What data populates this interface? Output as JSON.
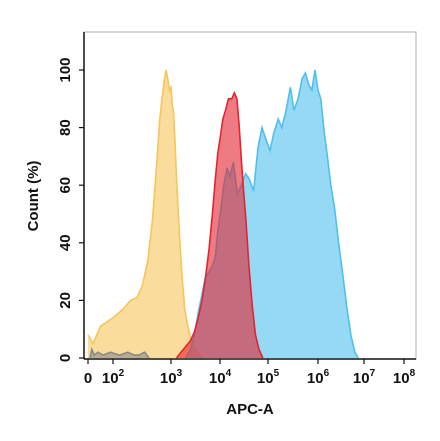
{
  "chart_data": {
    "type": "area",
    "xlabel": "APC-A",
    "ylabel": "Count (%)",
    "x_scale": "biexponential",
    "x_ticks": [
      {
        "value": 0,
        "base": "0",
        "exp": ""
      },
      {
        "value": 100,
        "base": "10",
        "exp": "2"
      },
      {
        "value": 1000,
        "base": "10",
        "exp": "3"
      },
      {
        "value": 10000,
        "base": "10",
        "exp": "4"
      },
      {
        "value": 100000,
        "base": "10",
        "exp": "5"
      },
      {
        "value": 1000000,
        "base": "10",
        "exp": "6"
      },
      {
        "value": 10000000,
        "base": "10",
        "exp": "7"
      },
      {
        "value": 100000000,
        "base": "10",
        "exp": "8"
      }
    ],
    "y_ticks": [
      "0",
      "20",
      "40",
      "60",
      "80",
      "100"
    ],
    "ylim": [
      0,
      108
    ],
    "grid": false,
    "series": [
      {
        "color": "#f7c55a",
        "x": [
          0,
          20,
          50,
          100,
          150,
          200,
          260,
          320,
          400,
          480,
          560,
          640,
          700,
          760,
          820,
          880,
          940,
          1000,
          1060,
          1120,
          1200,
          1300,
          1450,
          1650,
          1900,
          2200,
          2600,
          3100,
          3700,
          4400
        ],
        "y": [
          8,
          5,
          11,
          14,
          17,
          20,
          21,
          25,
          34,
          48,
          66,
          83,
          90,
          96,
          100,
          97,
          93,
          94,
          88,
          86,
          76,
          62,
          46,
          30,
          17,
          11,
          6,
          3,
          1,
          0
        ]
      },
      {
        "color": "#4fc0ee",
        "x": [
          2000,
          2500,
          3000,
          3600,
          4300,
          5000,
          6000,
          7000,
          8000,
          9000,
          10500,
          12000,
          14000,
          16000,
          19000,
          23000,
          28000,
          34000,
          41000,
          50000,
          62000,
          75000,
          90000,
          110000,
          130000,
          160000,
          190000,
          230000,
          280000,
          330000,
          400000,
          480000,
          560000,
          650000,
          750000,
          870000,
          1000000,
          1150000,
          1350000,
          1600000,
          1900000,
          2300000,
          2800000,
          3400000,
          4200000,
          5200000,
          6300000,
          7500000
        ],
        "y": [
          0,
          3,
          8,
          16,
          22,
          28,
          30,
          32,
          35,
          44,
          52,
          60,
          66,
          63,
          68,
          57,
          60,
          64,
          62,
          58,
          73,
          80,
          76,
          72,
          78,
          83,
          80,
          86,
          94,
          86,
          90,
          97,
          99,
          95,
          93,
          100,
          93,
          90,
          79,
          70,
          60,
          52,
          40,
          30,
          18,
          8,
          2,
          0
        ]
      },
      {
        "color": "#e4232e",
        "x": [
          1300,
          1600,
          2000,
          2500,
          3000,
          3600,
          4300,
          5000,
          6000,
          7000,
          8000,
          9000,
          10000,
          11500,
          13000,
          15000,
          17500,
          20000,
          22500,
          25000,
          28000,
          31000,
          35000,
          40000,
          47000,
          55000,
          65000,
          78000
        ],
        "y": [
          0,
          2,
          4,
          6,
          9,
          14,
          20,
          27,
          38,
          50,
          62,
          71,
          76,
          83,
          86,
          90,
          90,
          92,
          90,
          81,
          68,
          58,
          47,
          32,
          18,
          8,
          3,
          0
        ]
      },
      {
        "color": "#8a8a8a",
        "x": [
          8,
          15,
          25,
          40,
          60,
          90,
          130,
          180,
          230,
          280,
          350,
          420
        ],
        "y": [
          0,
          3,
          1,
          2,
          1,
          2,
          1,
          2,
          1,
          1,
          2,
          0
        ]
      }
    ]
  }
}
